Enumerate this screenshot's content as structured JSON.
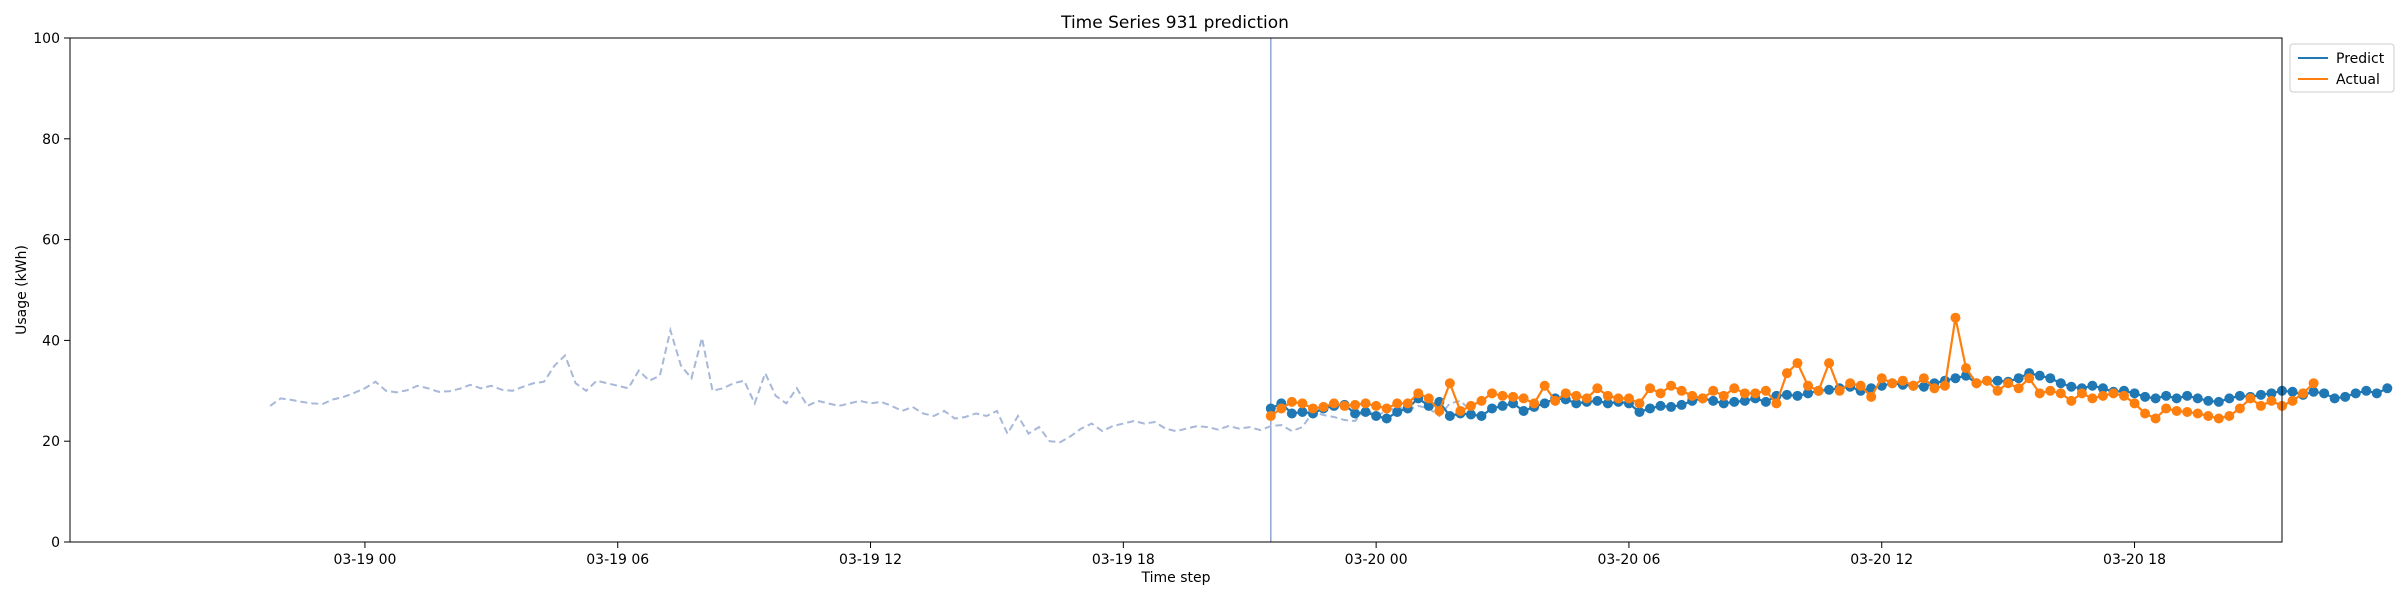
{
  "chart_data": {
    "type": "line",
    "title": "Time Series 931 prediction",
    "xlabel": "Time step",
    "ylabel": "Usage (kWh)",
    "ylim": [
      0,
      100
    ],
    "yticks": [
      0,
      20,
      40,
      60,
      80,
      100
    ],
    "x_unit": "hours since 03-19 00:00",
    "xlim": [
      -7.0,
      45.5
    ],
    "xticks": [
      {
        "label": "03-19 00",
        "hour": 0
      },
      {
        "label": "03-19 06",
        "hour": 6
      },
      {
        "label": "03-19 12",
        "hour": 12
      },
      {
        "label": "03-19 18",
        "hour": 18
      },
      {
        "label": "03-20 00",
        "hour": 24
      },
      {
        "label": "03-20 06",
        "hour": 30
      },
      {
        "label": "03-20 12",
        "hour": 36
      },
      {
        "label": "03-20 18",
        "hour": 42
      }
    ],
    "forecast_start_hour": 21.5,
    "history": {
      "start_hour": -2.25,
      "step_hours": 0.25,
      "values": [
        27.0,
        28.5,
        28.2,
        27.8,
        27.5,
        27.4,
        28.3,
        28.8,
        29.6,
        30.5,
        31.8,
        30.0,
        29.7,
        30.1,
        31.0,
        30.5,
        29.8,
        29.9,
        30.4,
        31.2,
        30.5,
        31.0,
        30.2,
        30.0,
        30.8,
        31.5,
        31.8,
        35.0,
        37.0,
        31.5,
        30.0,
        32.0,
        31.5,
        31.0,
        30.5,
        34.0,
        32.0,
        33.0,
        42.0,
        35.0,
        32.5,
        40.5,
        30.0,
        30.5,
        31.5,
        32.0,
        27.5,
        33.5,
        29.0,
        27.5,
        30.5,
        27.0,
        28.0,
        27.5,
        27.0,
        27.5,
        28.0,
        27.5,
        27.8,
        27.0,
        26.0,
        26.8,
        25.5,
        25.0,
        26.0,
        24.5,
        24.8,
        25.5,
        25.0,
        26.0,
        21.5,
        25.0,
        21.5,
        22.8,
        20.0,
        19.8,
        21.0,
        22.5,
        23.5,
        22.0,
        23.0,
        23.5,
        24.0,
        23.5,
        23.8,
        22.5,
        22.0,
        22.5,
        23.0,
        22.8,
        22.3,
        23.0,
        22.5,
        22.8,
        22.2,
        23.0,
        23.2,
        22.0,
        22.8,
        25.8,
        25.2,
        24.8,
        24.2,
        24.0,
        26.5,
        25.0,
        26.0,
        26.8,
        26.2,
        27.0,
        26.5,
        25.0,
        27.5,
        28.0,
        26.0
      ]
    },
    "series": [
      {
        "name": "Predict",
        "color": "#1f77b4",
        "start_hour": 21.5,
        "step_hours": 0.25,
        "values": [
          26.5,
          27.5,
          25.5,
          25.8,
          25.5,
          26.5,
          27.0,
          27.2,
          25.5,
          25.8,
          25.0,
          24.5,
          25.8,
          26.5,
          28.5,
          27.0,
          27.8,
          25.0,
          25.5,
          25.3,
          25.0,
          26.5,
          27.0,
          27.5,
          26.0,
          26.8,
          27.5,
          28.5,
          28.3,
          27.5,
          27.8,
          28.0,
          27.5,
          27.8,
          27.5,
          25.8,
          26.5,
          27.0,
          26.8,
          27.2,
          28.0,
          28.5,
          28.0,
          27.5,
          27.8,
          28.0,
          28.5,
          27.8,
          29.0,
          29.2,
          29.0,
          29.5,
          30.0,
          30.2,
          30.5,
          30.8,
          30.0,
          30.5,
          31.0,
          31.5,
          31.2,
          31.0,
          30.8,
          31.5,
          32.0,
          32.5,
          33.0,
          31.5,
          32.0,
          32.0,
          31.8,
          32.5,
          33.5,
          33.0,
          32.5,
          31.5,
          30.8,
          30.5,
          31.0,
          30.5,
          29.8,
          30.0,
          29.5,
          28.8,
          28.5,
          29.0,
          28.5,
          29.0,
          28.5,
          28.0,
          27.8,
          28.5,
          29.0,
          28.8,
          29.2,
          29.5,
          30.0,
          29.8,
          29.2,
          29.8,
          29.5,
          28.5,
          28.8,
          29.5,
          30.0,
          29.5,
          30.5
        ]
      },
      {
        "name": "Actual",
        "color": "#ff7f0e",
        "start_hour": 21.5,
        "step_hours": 0.25,
        "values": [
          25.0,
          26.5,
          27.8,
          27.5,
          26.5,
          26.8,
          27.5,
          27.0,
          27.2,
          27.5,
          27.0,
          26.5,
          27.5,
          27.5,
          29.5,
          28.5,
          26.0,
          31.5,
          26.0,
          27.0,
          28.0,
          29.5,
          29.0,
          28.8,
          28.5,
          27.5,
          31.0,
          28.0,
          29.5,
          29.0,
          28.5,
          30.5,
          29.0,
          28.5,
          28.5,
          27.5,
          30.5,
          29.5,
          31.0,
          30.0,
          29.0,
          28.5,
          30.0,
          29.0,
          30.5,
          29.5,
          29.5,
          30.0,
          27.5,
          33.5,
          35.5,
          31.0,
          30.0,
          35.5,
          30.0,
          31.5,
          31.0,
          28.8,
          32.5,
          31.5,
          32.0,
          31.0,
          32.5,
          30.5,
          31.0,
          44.5,
          34.5,
          31.5,
          32.0,
          30.0,
          31.5,
          30.5,
          32.5,
          29.5,
          30.0,
          29.5,
          28.0,
          29.5,
          28.5,
          29.0,
          29.5,
          29.0,
          27.5,
          25.5,
          24.5,
          26.5,
          26.0,
          25.8,
          25.5,
          25.0,
          24.5,
          25.0,
          26.5,
          28.5,
          27.0,
          28.0,
          27.0,
          28.0,
          29.5,
          31.5
        ]
      }
    ],
    "legend": {
      "position": "top-right",
      "entries": [
        "Predict",
        "Actual"
      ]
    }
  }
}
